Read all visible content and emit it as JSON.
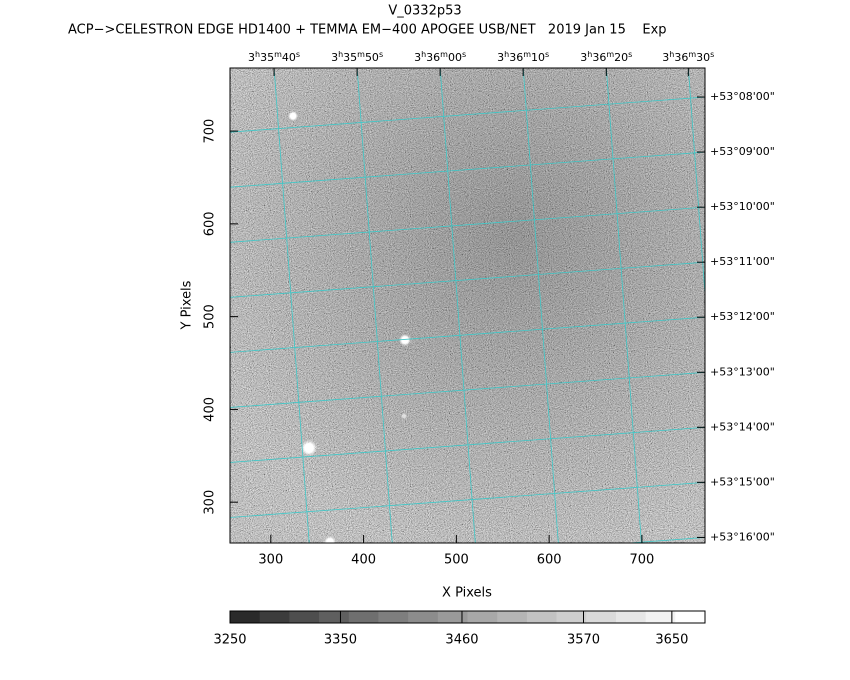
{
  "chart_data": {
    "type": "image",
    "title": "V_0332p53",
    "subtitle": "ACP−>CELESTRON EDGE HD1400 + TEMMA EM−400 APOGEE USB/NET   2019 Jan 15    Exp",
    "x_label": "X Pixels",
    "y_label": "Y Pixels",
    "xlim": [
      256,
      768
    ],
    "ylim": [
      256,
      768
    ],
    "xticks": [
      300,
      400,
      500,
      600,
      700
    ],
    "yticks": [
      300,
      400,
      500,
      600,
      700
    ],
    "grid_color": "#3fc8c8",
    "x2ticks": [
      {
        "value": 303.5,
        "label": [
          "3",
          "h",
          "35",
          "m",
          "40",
          "s"
        ]
      },
      {
        "value": 393,
        "label": [
          "3",
          "h",
          "35",
          "m",
          "50",
          "s"
        ]
      },
      {
        "value": 482.5,
        "label": [
          "3",
          "h",
          "36",
          "m",
          "00",
          "s"
        ]
      },
      {
        "value": 572,
        "label": [
          "3",
          "h",
          "36",
          "m",
          "10",
          "s"
        ]
      },
      {
        "value": 661.6,
        "label": [
          "3",
          "h",
          "36",
          "m",
          "20",
          "s"
        ]
      },
      {
        "value": 750,
        "label": [
          "3",
          "h",
          "36",
          "m",
          "30",
          "s"
        ]
      }
    ],
    "y2ticks": [
      {
        "value": 736.7,
        "label": "+53°08'00\""
      },
      {
        "value": 677.4,
        "label": "+53°09'00\""
      },
      {
        "value": 618,
        "label": "+53°10'00\""
      },
      {
        "value": 558.7,
        "label": "+53°11'00\""
      },
      {
        "value": 499.4,
        "label": "+53°12'00\""
      },
      {
        "value": 440,
        "label": "+53°13'00\""
      },
      {
        "value": 380.7,
        "label": "+53°14'00\""
      },
      {
        "value": 321.4,
        "label": "+53°15'00\""
      },
      {
        "value": 262,
        "label": "+53°16'00\""
      }
    ],
    "colorbar": {
      "clim": [
        3250,
        3680
      ],
      "ticks": [
        3250,
        3350,
        3460,
        3570,
        3650
      ],
      "colors": [
        "#2a2a2a",
        "#3c3c3c",
        "#4e4e4e",
        "#5f5f5f",
        "#6f6f6f",
        "#7e7e7e",
        "#8c8c8c",
        "#9a9a9a",
        "#a8a8a8",
        "#b5b5b5",
        "#c2c2c2",
        "#cecece",
        "#dadada",
        "#e6e6e6",
        "#f2f2f2",
        "#ffffff"
      ]
    }
  }
}
